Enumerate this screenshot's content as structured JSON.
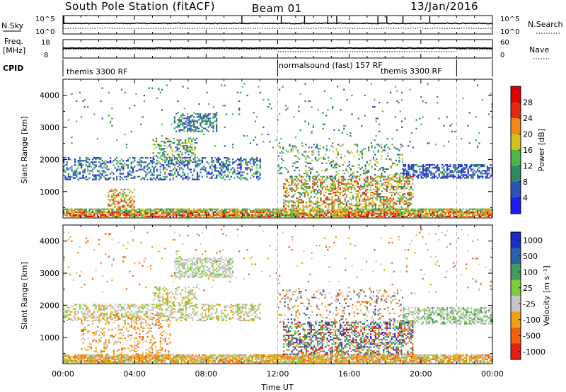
{
  "header": {
    "station": "South Pole Station (fitACF)",
    "beam": "Beam 01",
    "date": "13/Jan/2016"
  },
  "nsky_panel": {
    "left_label": "N.Sky",
    "right_label": "N.Search",
    "left_ticks": [
      "10^5",
      "10^0"
    ],
    "right_ticks": [
      "10^5",
      "10^0"
    ]
  },
  "freq_panel": {
    "left_label_1": "Freq.",
    "left_label_2": "[MHz]",
    "right_label": "Nave",
    "left_ticks": [
      "18",
      "8"
    ],
    "right_ticks": [
      "60",
      "0"
    ]
  },
  "cpid": {
    "label": "CPID",
    "segments": [
      {
        "text": "themis 3300 RF",
        "start_h": 0
      },
      {
        "text": "normalsound (fast) 157 RF",
        "start_h": 12
      },
      {
        "text": "themis 3300 RF",
        "start_h": 17.2
      }
    ],
    "dividers_h": [
      12,
      22
    ]
  },
  "chart_data": [
    {
      "type": "heatmap",
      "ylabel": "Slant Range [km]",
      "y_ticks": [
        "1000",
        "2000",
        "3000",
        "4000"
      ],
      "ylim": [
        180,
        4500
      ],
      "colorbar_label": "Power [dB]",
      "colorbar_ticks": [
        "4",
        "8",
        "12",
        "16",
        "20",
        "24",
        "28"
      ],
      "colors": [
        "#1c1cf0",
        "#2c54b4",
        "#2e8a60",
        "#49b848",
        "#cfc51a",
        "#f08a16",
        "#e42a12",
        "#e00000"
      ]
    },
    {
      "type": "heatmap",
      "ylabel": "Slant Range [km]",
      "y_ticks": [
        "1000",
        "2000",
        "3000",
        "4000"
      ],
      "ylim": [
        180,
        4500
      ],
      "colorbar_label": "Velocity [m s⁻¹]",
      "colorbar_ticks": [
        "1000",
        "500",
        "100",
        "25",
        "-25",
        "-100",
        "-500",
        "-1000"
      ],
      "colors": [
        "#1c2ec8",
        "#2a62a8",
        "#3f9c5c",
        "#7ccc3c",
        "#c6c6c6",
        "#f0a010",
        "#f06010",
        "#e41e10"
      ]
    }
  ],
  "x_axis": {
    "label": "Time UT",
    "ticks": [
      "00:00",
      "04:00",
      "08:00",
      "12:00",
      "16:00",
      "20:00",
      "00:00"
    ]
  }
}
